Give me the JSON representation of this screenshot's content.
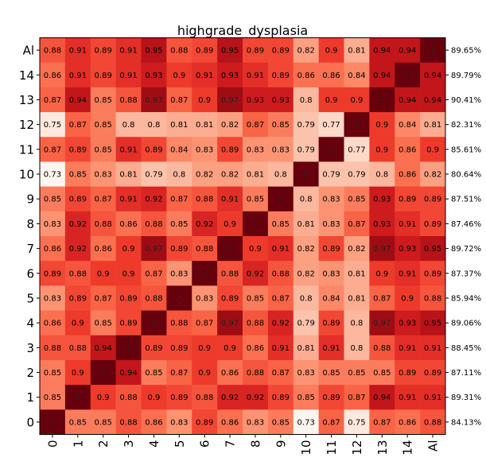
{
  "chart_data": {
    "type": "heatmap",
    "title": "highgrade_dysplasia",
    "colormap": "Reds",
    "vmin": 0.73,
    "vmax": 1.0,
    "row_labels": [
      "Al",
      "14",
      "13",
      "12",
      "11",
      "10",
      "9",
      "8",
      "7",
      "6",
      "5",
      "4",
      "3",
      "2",
      "1",
      "0"
    ],
    "col_labels": [
      "0",
      "1",
      "2",
      "3",
      "4",
      "5",
      "6",
      "7",
      "8",
      "9",
      "10",
      "11",
      "12",
      "13",
      "14",
      "Al"
    ],
    "right_labels": [
      "89.65%",
      "89.79%",
      "90.41%",
      "82.31%",
      "85.61%",
      "80.64%",
      "87.51%",
      "87.46%",
      "89.72%",
      "87.37%",
      "85.94%",
      "89.06%",
      "88.45%",
      "87.11%",
      "89.31%",
      "84.13%"
    ],
    "values": [
      [
        "0.88",
        "0.91",
        "0.89",
        "0.91",
        "0.95",
        "0.88",
        "0.89",
        "0.95",
        "0.89",
        "0.89",
        "0.82",
        "0.9",
        "0.81",
        "0.94",
        "0.94",
        "1"
      ],
      [
        "0.86",
        "0.91",
        "0.89",
        "0.91",
        "0.93",
        "0.9",
        "0.91",
        "0.93",
        "0.91",
        "0.89",
        "0.86",
        "0.86",
        "0.84",
        "0.94",
        "1",
        "0.94"
      ],
      [
        "0.87",
        "0.94",
        "0.85",
        "0.88",
        "0.97",
        "0.87",
        "0.9",
        "0.97",
        "0.93",
        "0.93",
        "0.8",
        "0.9",
        "0.9",
        "1",
        "0.94",
        "0.94"
      ],
      [
        "0.75",
        "0.87",
        "0.85",
        "0.8",
        "0.8",
        "0.81",
        "0.81",
        "0.82",
        "0.87",
        "0.85",
        "0.79",
        "0.77",
        "1",
        "0.9",
        "0.84",
        "0.81"
      ],
      [
        "0.87",
        "0.89",
        "0.85",
        "0.91",
        "0.89",
        "0.84",
        "0.83",
        "0.89",
        "0.83",
        "0.83",
        "0.79",
        "1",
        "0.77",
        "0.9",
        "0.86",
        "0.9"
      ],
      [
        "0.73",
        "0.85",
        "0.83",
        "0.81",
        "0.79",
        "0.8",
        "0.82",
        "0.82",
        "0.81",
        "0.8",
        "1",
        "0.79",
        "0.79",
        "0.8",
        "0.86",
        "0.82"
      ],
      [
        "0.85",
        "0.89",
        "0.87",
        "0.91",
        "0.92",
        "0.87",
        "0.88",
        "0.91",
        "0.85",
        "1",
        "0.8",
        "0.83",
        "0.85",
        "0.93",
        "0.89",
        "0.89"
      ],
      [
        "0.83",
        "0.92",
        "0.88",
        "0.86",
        "0.88",
        "0.85",
        "0.92",
        "0.9",
        "1",
        "0.85",
        "0.81",
        "0.83",
        "0.87",
        "0.93",
        "0.91",
        "0.89"
      ],
      [
        "0.86",
        "0.92",
        "0.86",
        "0.9",
        "0.97",
        "0.89",
        "0.88",
        "1",
        "0.9",
        "0.91",
        "0.82",
        "0.89",
        "0.82",
        "0.97",
        "0.93",
        "0.95"
      ],
      [
        "0.89",
        "0.88",
        "0.9",
        "0.9",
        "0.87",
        "0.83",
        "1",
        "0.88",
        "0.92",
        "0.88",
        "0.82",
        "0.83",
        "0.81",
        "0.9",
        "0.91",
        "0.89"
      ],
      [
        "0.83",
        "0.89",
        "0.87",
        "0.89",
        "0.88",
        "1",
        "0.83",
        "0.89",
        "0.85",
        "0.87",
        "0.8",
        "0.84",
        "0.81",
        "0.87",
        "0.9",
        "0.88"
      ],
      [
        "0.86",
        "0.9",
        "0.85",
        "0.89",
        "1",
        "0.88",
        "0.87",
        "0.97",
        "0.88",
        "0.92",
        "0.79",
        "0.89",
        "0.8",
        "0.97",
        "0.93",
        "0.95"
      ],
      [
        "0.88",
        "0.88",
        "0.94",
        "1",
        "0.89",
        "0.89",
        "0.9",
        "0.9",
        "0.86",
        "0.91",
        "0.81",
        "0.91",
        "0.8",
        "0.88",
        "0.91",
        "0.91"
      ],
      [
        "0.85",
        "0.9",
        "1",
        "0.94",
        "0.85",
        "0.87",
        "0.9",
        "0.86",
        "0.88",
        "0.87",
        "0.83",
        "0.85",
        "0.85",
        "0.85",
        "0.89",
        "0.89"
      ],
      [
        "0.85",
        "1",
        "0.9",
        "0.88",
        "0.9",
        "0.89",
        "0.88",
        "0.92",
        "0.92",
        "0.89",
        "0.85",
        "0.89",
        "0.87",
        "0.94",
        "0.91",
        "0.91"
      ],
      [
        "1",
        "0.85",
        "0.85",
        "0.88",
        "0.86",
        "0.83",
        "0.89",
        "0.86",
        "0.83",
        "0.85",
        "0.73",
        "0.87",
        "0.75",
        "0.87",
        "0.86",
        "0.88"
      ]
    ]
  }
}
